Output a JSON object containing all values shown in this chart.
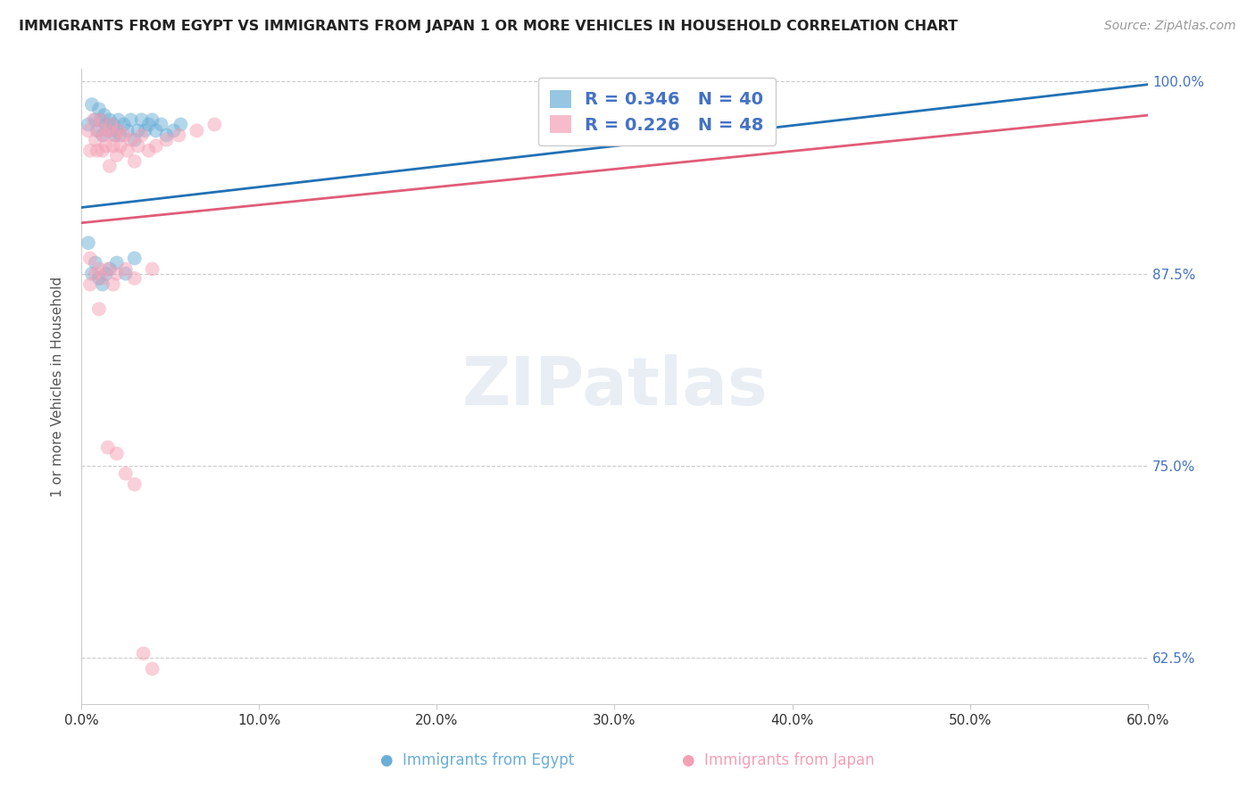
{
  "title": "IMMIGRANTS FROM EGYPT VS IMMIGRANTS FROM JAPAN 1 OR MORE VEHICLES IN HOUSEHOLD CORRELATION CHART",
  "source": "Source: ZipAtlas.com",
  "ylabel": "1 or more Vehicles in Household",
  "xlim": [
    0.0,
    0.6
  ],
  "ylim": [
    0.595,
    1.008
  ],
  "yticks": [
    0.625,
    0.75,
    0.875,
    1.0
  ],
  "ytick_labels": [
    "62.5%",
    "75.0%",
    "87.5%",
    "100.0%"
  ],
  "xticks": [
    0.0,
    0.1,
    0.2,
    0.3,
    0.4,
    0.5,
    0.6
  ],
  "xtick_labels": [
    "0.0%",
    "10.0%",
    "20.0%",
    "30.0%",
    "40.0%",
    "50.0%",
    "60.0%"
  ],
  "egypt_color": "#6aaed6",
  "japan_color": "#f4a0b5",
  "egypt_line_color": "#2171b5",
  "japan_line_color": "#e05c7a",
  "egypt_R": 0.346,
  "egypt_N": 40,
  "japan_R": 0.226,
  "japan_N": 48,
  "background_color": "#ffffff",
  "grid_color": "#cccccc",
  "title_color": "#222222",
  "legend_egypt_label": "Immigrants from Egypt",
  "legend_japan_label": "Immigrants from Japan",
  "egypt_x": [
    0.004,
    0.006,
    0.008,
    0.009,
    0.01,
    0.011,
    0.012,
    0.013,
    0.014,
    0.015,
    0.016,
    0.018,
    0.019,
    0.02,
    0.021,
    0.022,
    0.024,
    0.026,
    0.028,
    0.03,
    0.032,
    0.034,
    0.036,
    0.038,
    0.04,
    0.042,
    0.045,
    0.048,
    0.052,
    0.056,
    0.004,
    0.006,
    0.008,
    0.01,
    0.012,
    0.014,
    0.016,
    0.02,
    0.025,
    0.03
  ],
  "egypt_y": [
    0.972,
    0.985,
    0.975,
    0.968,
    0.982,
    0.975,
    0.965,
    0.978,
    0.972,
    0.968,
    0.975,
    0.972,
    0.965,
    0.968,
    0.975,
    0.965,
    0.972,
    0.968,
    0.975,
    0.962,
    0.968,
    0.975,
    0.968,
    0.972,
    0.975,
    0.968,
    0.972,
    0.965,
    0.968,
    0.972,
    0.895,
    0.875,
    0.882,
    0.872,
    0.868,
    0.875,
    0.878,
    0.882,
    0.875,
    0.885
  ],
  "japan_x": [
    0.004,
    0.005,
    0.007,
    0.008,
    0.009,
    0.01,
    0.011,
    0.012,
    0.013,
    0.014,
    0.015,
    0.016,
    0.017,
    0.018,
    0.019,
    0.02,
    0.021,
    0.022,
    0.024,
    0.026,
    0.028,
    0.03,
    0.032,
    0.034,
    0.038,
    0.042,
    0.048,
    0.055,
    0.065,
    0.075,
    0.005,
    0.008,
    0.01,
    0.012,
    0.015,
    0.018,
    0.02,
    0.025,
    0.03,
    0.04,
    0.005,
    0.01,
    0.015,
    0.02,
    0.025,
    0.03,
    0.035,
    0.04
  ],
  "japan_y": [
    0.968,
    0.955,
    0.975,
    0.962,
    0.955,
    0.968,
    0.975,
    0.955,
    0.965,
    0.958,
    0.968,
    0.945,
    0.972,
    0.958,
    0.965,
    0.952,
    0.968,
    0.958,
    0.965,
    0.955,
    0.962,
    0.948,
    0.958,
    0.965,
    0.955,
    0.958,
    0.962,
    0.965,
    0.968,
    0.972,
    0.885,
    0.875,
    0.878,
    0.872,
    0.878,
    0.868,
    0.875,
    0.878,
    0.872,
    0.878,
    0.868,
    0.852,
    0.762,
    0.758,
    0.745,
    0.738,
    0.628,
    0.618
  ],
  "egypt_trend_x": [
    0.0,
    0.6
  ],
  "egypt_trend_y": [
    0.918,
    0.998
  ],
  "japan_trend_x": [
    0.0,
    0.6
  ],
  "japan_trend_y": [
    0.908,
    0.978
  ]
}
